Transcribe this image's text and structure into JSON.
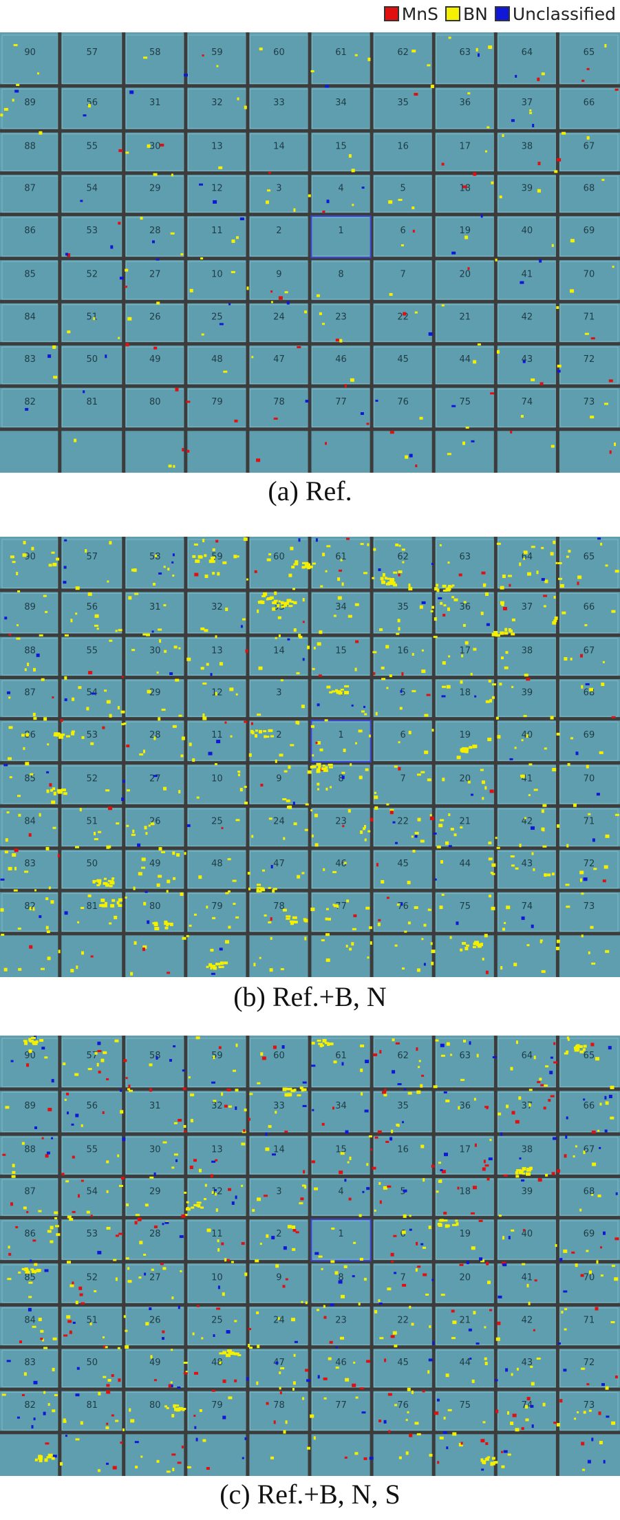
{
  "legend": {
    "items": [
      {
        "label": "MnS",
        "color": "#e01010"
      },
      {
        "label": "BN",
        "color": "#f5f000"
      },
      {
        "label": "Unclassified",
        "color": "#1018d8"
      }
    ]
  },
  "grid_numbers": [
    [
      "90",
      "57",
      "58",
      "59",
      "60",
      "61",
      "62",
      "63",
      "64",
      "65"
    ],
    [
      "89",
      "56",
      "31",
      "32",
      "33",
      "34",
      "35",
      "36",
      "37",
      "66"
    ],
    [
      "88",
      "55",
      "30",
      "13",
      "14",
      "15",
      "16",
      "17",
      "38",
      "67"
    ],
    [
      "87",
      "54",
      "29",
      "12",
      "3",
      "4",
      "5",
      "18",
      "39",
      "68"
    ],
    [
      "86",
      "53",
      "28",
      "11",
      "2",
      "1",
      "6",
      "19",
      "40",
      "69"
    ],
    [
      "85",
      "52",
      "27",
      "10",
      "9",
      "8",
      "7",
      "20",
      "41",
      "70"
    ],
    [
      "84",
      "51",
      "26",
      "25",
      "24",
      "23",
      "22",
      "21",
      "42",
      "71"
    ],
    [
      "83",
      "50",
      "49",
      "48",
      "47",
      "46",
      "45",
      "44",
      "43",
      "72"
    ],
    [
      "82",
      "81",
      "80",
      "79",
      "78",
      "77",
      "76",
      "75",
      "74",
      "73"
    ]
  ],
  "panels": [
    {
      "id": "a",
      "caption": "(a) Ref.",
      "density": "low"
    },
    {
      "id": "b",
      "caption": "(b) Ref.+B, N",
      "density": "high"
    },
    {
      "id": "c",
      "caption": "(c) Ref.+B, N, S",
      "density": "high-with-mns"
    }
  ],
  "colors": {
    "field": "#5f9eae",
    "grid_line": "#3c3c3c",
    "highlight": "#3a46d6",
    "mns": "#e01010",
    "bn": "#f5f000",
    "unclassified": "#1018d8"
  }
}
